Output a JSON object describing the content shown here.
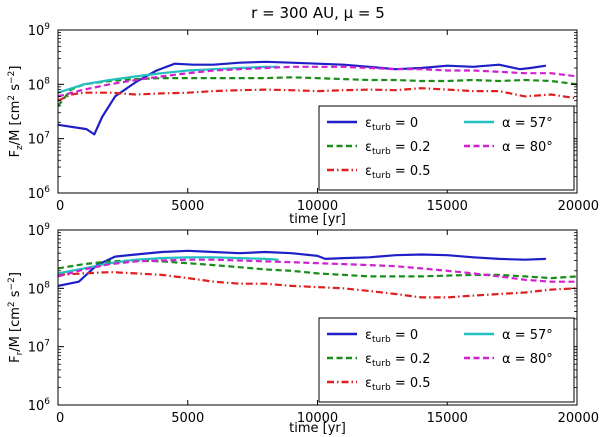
{
  "figure_title": "r = 300 AU, μ = 5",
  "chart_data": [
    {
      "type": "line",
      "title": "r = 300 AU, μ = 5",
      "xlabel": "time [yr]",
      "ylabel": "F_z/M [cm² s⁻²]",
      "ylabel_base": "F",
      "ylabel_sub": "z",
      "ylabel_rest": "/M [cm",
      "ylabel_sup": "2",
      "ylabel_tail": " s",
      "ylabel_sup2": "−2",
      "ylabel_end": "]",
      "xlim": [
        0,
        20000
      ],
      "ylim": [
        1000000,
        1000000000
      ],
      "yscale": "log",
      "x_ticks": [
        "0",
        "5000",
        "10000",
        "15000",
        "20000"
      ],
      "y_ticks": [
        {
          "base": "10",
          "exp": "6"
        },
        {
          "base": "10",
          "exp": "7"
        },
        {
          "base": "10",
          "exp": "8"
        },
        {
          "base": "10",
          "exp": "9"
        }
      ],
      "legend_position": "lower-right",
      "series": [
        {
          "name": "εturb = 0",
          "symbol": "ε",
          "sub": "turb",
          "rest": " = 0",
          "color": "#1f1fc7",
          "style": "solid",
          "x": [
            0,
            1100,
            1400,
            1700,
            2200,
            3000,
            3800,
            4500,
            5200,
            6000,
            7000,
            8000,
            9000,
            10000,
            11000,
            12000,
            13000,
            14000,
            15000,
            16000,
            17000,
            17800,
            18200,
            18800
          ],
          "y": [
            18000000.0,
            15000000.0,
            12000000.0,
            25000000.0,
            60000000.0,
            110000000.0,
            180000000.0,
            240000000.0,
            230000000.0,
            230000000.0,
            250000000.0,
            260000000.0,
            250000000.0,
            240000000.0,
            230000000.0,
            210000000.0,
            190000000.0,
            200000000.0,
            220000000.0,
            210000000.0,
            230000000.0,
            190000000.0,
            200000000.0,
            220000000.0
          ]
        },
        {
          "name": "εturb = 0.2",
          "symbol": "ε",
          "sub": "turb",
          "rest": " = 0.2",
          "color": "#1a8c1a",
          "style": "dashed",
          "x": [
            0,
            500,
            1000,
            2000,
            3000,
            4000,
            5000,
            6000,
            7000,
            8000,
            9000,
            10000,
            11000,
            12000,
            13000,
            14000,
            15000,
            16000,
            17000,
            18000,
            19000,
            20000
          ],
          "y": [
            40000000.0,
            80000000.0,
            100000000.0,
            115000000.0,
            125000000.0,
            130000000.0,
            130000000.0,
            130000000.0,
            130000000.0,
            130000000.0,
            135000000.0,
            130000000.0,
            125000000.0,
            120000000.0,
            120000000.0,
            115000000.0,
            115000000.0,
            120000000.0,
            115000000.0,
            120000000.0,
            115000000.0,
            100000000.0
          ]
        },
        {
          "name": "εturb = 0.5",
          "symbol": "ε",
          "sub": "turb",
          "rest": " = 0.5",
          "color": "#e02020",
          "style": "dashdot",
          "x": [
            0,
            500,
            1000,
            2000,
            3000,
            4000,
            5000,
            6000,
            7000,
            8000,
            9000,
            10000,
            11000,
            12000,
            13000,
            14000,
            15000,
            16000,
            17000,
            18000,
            19000,
            20000
          ],
          "y": [
            50000000.0,
            65000000.0,
            70000000.0,
            70000000.0,
            65000000.0,
            68000000.0,
            70000000.0,
            75000000.0,
            78000000.0,
            80000000.0,
            78000000.0,
            75000000.0,
            78000000.0,
            80000000.0,
            78000000.0,
            85000000.0,
            80000000.0,
            75000000.0,
            75000000.0,
            60000000.0,
            65000000.0,
            55000000.0
          ]
        },
        {
          "name": "α = 57°",
          "symbol": "α",
          "sub": "",
          "rest": " = 57°",
          "color": "#20c0c0",
          "style": "solid",
          "x": [
            0,
            1000,
            2000,
            3000,
            4000,
            5000,
            6000,
            7000,
            8000,
            8500
          ],
          "y": [
            70000000.0,
            100000000.0,
            120000000.0,
            140000000.0,
            160000000.0,
            180000000.0,
            190000000.0,
            200000000.0,
            210000000.0,
            210000000.0
          ]
        },
        {
          "name": "α = 80°",
          "symbol": "α",
          "sub": "",
          "rest": " = 80°",
          "color": "#d020d0",
          "style": "dashed",
          "x": [
            0,
            1000,
            2000,
            3000,
            4000,
            5000,
            6000,
            7000,
            8000,
            9000,
            10000,
            11000,
            12000,
            13000,
            14000,
            15000,
            16000,
            17000,
            18000,
            19000,
            20000
          ],
          "y": [
            60000000.0,
            80000000.0,
            100000000.0,
            120000000.0,
            140000000.0,
            160000000.0,
            180000000.0,
            190000000.0,
            200000000.0,
            210000000.0,
            210000000.0,
            210000000.0,
            200000000.0,
            190000000.0,
            190000000.0,
            180000000.0,
            180000000.0,
            170000000.0,
            160000000.0,
            160000000.0,
            140000000.0
          ]
        }
      ]
    },
    {
      "type": "line",
      "title": "",
      "xlabel": "time [yr]",
      "ylabel": "F_r/M [cm² s⁻²]",
      "ylabel_base": "F",
      "ylabel_sub": "r",
      "ylabel_rest": "/M [cm",
      "ylabel_sup": "2",
      "ylabel_tail": " s",
      "ylabel_sup2": "−2",
      "ylabel_end": "]",
      "xlim": [
        0,
        20000
      ],
      "ylim": [
        1000000,
        1000000000
      ],
      "yscale": "log",
      "x_ticks": [
        "0",
        "5000",
        "10000",
        "15000",
        "20000"
      ],
      "y_ticks": [
        {
          "base": "10",
          "exp": "6"
        },
        {
          "base": "10",
          "exp": "7"
        },
        {
          "base": "10",
          "exp": "8"
        },
        {
          "base": "10",
          "exp": "9"
        }
      ],
      "legend_position": "lower-right",
      "series": [
        {
          "name": "εturb = 0",
          "symbol": "ε",
          "sub": "turb",
          "rest": " = 0",
          "color": "#1f1fc7",
          "style": "solid",
          "x": [
            0,
            800,
            1500,
            2200,
            3000,
            4000,
            5000,
            6000,
            7000,
            8000,
            9000,
            10000,
            10300,
            11000,
            12000,
            13000,
            14000,
            15000,
            16000,
            17000,
            18000,
            18800
          ],
          "y": [
            110000000.0,
            130000000.0,
            250000000.0,
            350000000.0,
            380000000.0,
            420000000.0,
            440000000.0,
            420000000.0,
            400000000.0,
            420000000.0,
            400000000.0,
            360000000.0,
            320000000.0,
            330000000.0,
            340000000.0,
            370000000.0,
            380000000.0,
            370000000.0,
            340000000.0,
            320000000.0,
            310000000.0,
            320000000.0
          ]
        },
        {
          "name": "εturb = 0.2",
          "symbol": "ε",
          "sub": "turb",
          "rest": " = 0.2",
          "color": "#1a8c1a",
          "style": "dashed",
          "x": [
            0,
            1000,
            2000,
            3000,
            4000,
            5000,
            6000,
            7000,
            8000,
            9000,
            10000,
            11000,
            12000,
            13000,
            14000,
            15000,
            16000,
            17000,
            18000,
            19000,
            20000
          ],
          "y": [
            220000000.0,
            260000000.0,
            290000000.0,
            300000000.0,
            290000000.0,
            270000000.0,
            250000000.0,
            230000000.0,
            210000000.0,
            200000000.0,
            180000000.0,
            170000000.0,
            160000000.0,
            160000000.0,
            160000000.0,
            165000000.0,
            170000000.0,
            170000000.0,
            160000000.0,
            150000000.0,
            160000000.0
          ]
        },
        {
          "name": "εturb = 0.5",
          "symbol": "ε",
          "sub": "turb",
          "rest": " = 0.5",
          "color": "#e02020",
          "style": "dashdot",
          "x": [
            0,
            1000,
            2000,
            3000,
            4000,
            5000,
            6000,
            7000,
            8000,
            9000,
            10000,
            11000,
            12000,
            13000,
            14000,
            15000,
            16000,
            17000,
            18000,
            19000,
            20000
          ],
          "y": [
            170000000.0,
            180000000.0,
            190000000.0,
            180000000.0,
            170000000.0,
            150000000.0,
            130000000.0,
            120000000.0,
            120000000.0,
            110000000.0,
            105000000.0,
            100000000.0,
            90000000.0,
            80000000.0,
            70000000.0,
            70000000.0,
            75000000.0,
            80000000.0,
            85000000.0,
            95000000.0,
            100000000.0
          ]
        },
        {
          "name": "α = 57°",
          "symbol": "α",
          "sub": "",
          "rest": " = 57°",
          "color": "#20c0c0",
          "style": "solid",
          "x": [
            0,
            1000,
            2000,
            3000,
            4000,
            5000,
            6000,
            7000,
            8000,
            8500
          ],
          "y": [
            180000000.0,
            220000000.0,
            270000000.0,
            310000000.0,
            330000000.0,
            340000000.0,
            340000000.0,
            330000000.0,
            320000000.0,
            310000000.0
          ]
        },
        {
          "name": "α = 80°",
          "symbol": "α",
          "sub": "",
          "rest": " = 80°",
          "color": "#d020d0",
          "style": "dashed",
          "x": [
            0,
            1000,
            2000,
            3000,
            4000,
            5000,
            6000,
            7000,
            8000,
            9000,
            10000,
            11000,
            12000,
            13000,
            14000,
            15000,
            16000,
            17000,
            18000,
            19000,
            20000
          ],
          "y": [
            160000000.0,
            210000000.0,
            260000000.0,
            290000000.0,
            300000000.0,
            310000000.0,
            310000000.0,
            300000000.0,
            290000000.0,
            280000000.0,
            270000000.0,
            260000000.0,
            250000000.0,
            240000000.0,
            220000000.0,
            200000000.0,
            180000000.0,
            160000000.0,
            140000000.0,
            130000000.0,
            130000000.0
          ]
        }
      ]
    }
  ]
}
